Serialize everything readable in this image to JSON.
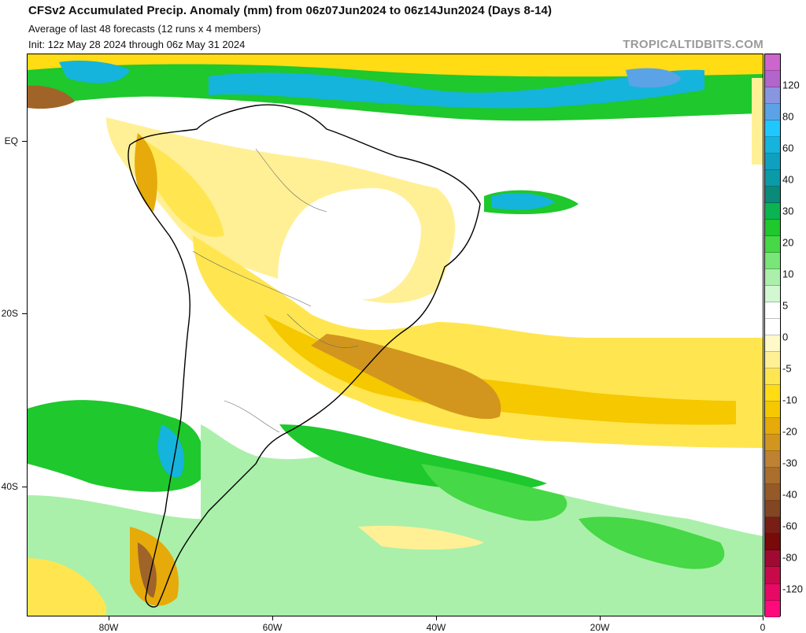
{
  "header": {
    "title": "CFSv2 Accumulated Precip. Anomaly (mm) from 06z07Jun2024 to 06z14Jun2024 (Days 8-14)",
    "subtitle_1": "Average of last 48 forecasts (12 runs x 4 members)",
    "subtitle_2": "Init: 12z May 28 2024 through 06z May 31 2024",
    "brand": "TROPICALTIDBITS.COM"
  },
  "axes": {
    "lat_labels": [
      "EQ",
      "20S",
      "40S"
    ],
    "lon_labels": [
      "80W",
      "60W",
      "40W",
      "20W",
      "0"
    ]
  },
  "colorbar": {
    "labels": [
      "120",
      "80",
      "60",
      "40",
      "30",
      "20",
      "10",
      "5",
      "0",
      "-5",
      "-10",
      "-20",
      "-30",
      "-40",
      "-60",
      "-80",
      "-120"
    ],
    "colors": [
      "#cc66cc",
      "#b266cc",
      "#8896e0",
      "#5aa3e6",
      "#1ec8ff",
      "#15b4dc",
      "#0fa0c0",
      "#0a9aa8",
      "#0a8a78",
      "#0ab450",
      "#1ec82d",
      "#46d846",
      "#78e678",
      "#aaf0aa",
      "#d2f8d2",
      "#ffffff",
      "#ffffff",
      "#fff8c8",
      "#fff096",
      "#ffe650",
      "#ffdc14",
      "#f5c800",
      "#e6aa0a",
      "#d2961e",
      "#be8232",
      "#aa6e2d",
      "#965a28",
      "#824623",
      "#781e14",
      "#780a0a",
      "#a00a32",
      "#c80a4b",
      "#e60a64",
      "#ff0a7d"
    ]
  }
}
